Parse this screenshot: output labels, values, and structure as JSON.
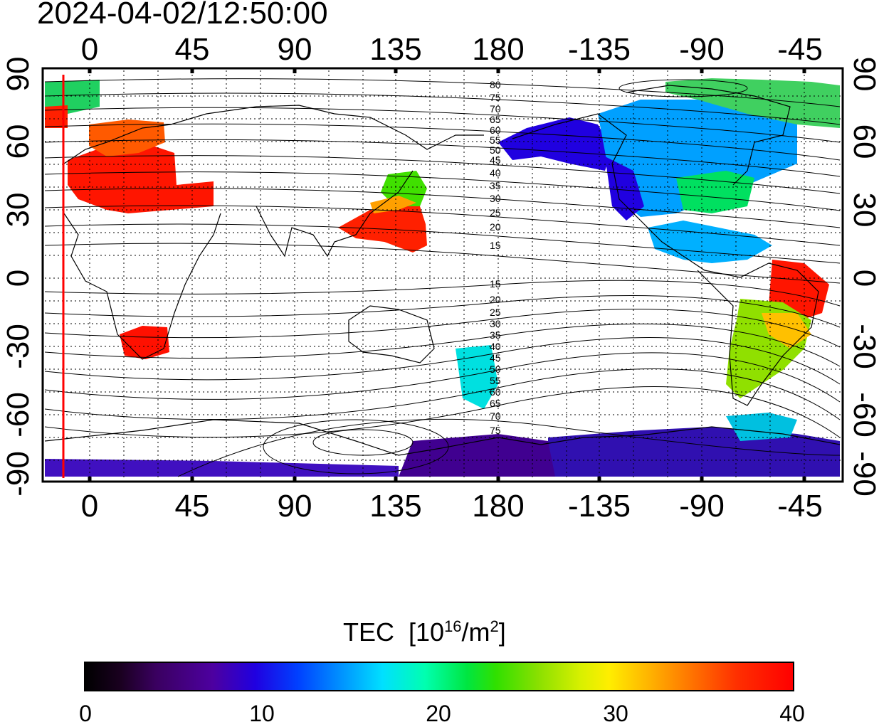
{
  "timestamp": "2024-04-02/12:50:00",
  "map": {
    "top_lon_labels": [
      "0",
      "45",
      "90",
      "135",
      "180",
      "-135",
      "-90",
      "-45"
    ],
    "bottom_lon_labels": [
      "0",
      "45",
      "90",
      "135",
      "180",
      "-135",
      "-90",
      "-45"
    ],
    "left_lat_labels": [
      "90",
      "60",
      "30",
      "0",
      "-30",
      "-60",
      "-90"
    ],
    "right_lat_labels": [
      "90",
      "60",
      "30",
      "0",
      "-30",
      "-60",
      "-90"
    ],
    "contour_labels_north": [
      "80",
      "75",
      "70",
      "65",
      "60",
      "55",
      "50",
      "45",
      "40",
      "35",
      "30",
      "25",
      "20",
      "15"
    ],
    "contour_labels_south": [
      "15",
      "20",
      "25",
      "30",
      "35",
      "40",
      "45",
      "50",
      "55",
      "60",
      "65",
      "70",
      "75"
    ],
    "terminator_line_color": "#ff0000"
  },
  "colorbar": {
    "title": "TEC",
    "unit_prefix": "[10",
    "unit_exp": "16",
    "unit_mid": "/m",
    "unit_exp2": "2",
    "unit_suffix": "]",
    "tick_labels": [
      "0",
      "10",
      "20",
      "30",
      "40"
    ],
    "range": [
      0,
      40
    ]
  }
}
